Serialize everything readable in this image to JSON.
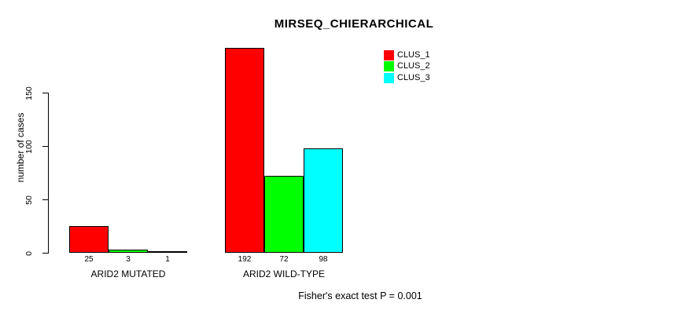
{
  "chart_data": {
    "type": "bar",
    "title": "MIRSEQ_CHIERARCHICAL",
    "ylabel": "number of cases",
    "xlabel": "",
    "categories": [
      "ARID2 MUTATED",
      "ARID2 WILD-TYPE"
    ],
    "series": [
      {
        "name": "CLUS_1",
        "color": "#ff0000",
        "values": [
          25,
          192
        ]
      },
      {
        "name": "CLUS_2",
        "color": "#00ff00",
        "values": [
          3,
          72
        ]
      },
      {
        "name": "CLUS_3",
        "color": "#00ffff",
        "values": [
          1,
          98
        ]
      }
    ],
    "yticks": [
      0,
      50,
      100,
      150
    ],
    "ylim": [
      0,
      195
    ],
    "grid": false,
    "legend": {
      "position": "top-right",
      "entries": [
        "CLUS_1",
        "CLUS_2",
        "CLUS_3"
      ]
    },
    "bar_border_color": "#000000",
    "annotation": "Fisher's exact test P = 0.001"
  }
}
